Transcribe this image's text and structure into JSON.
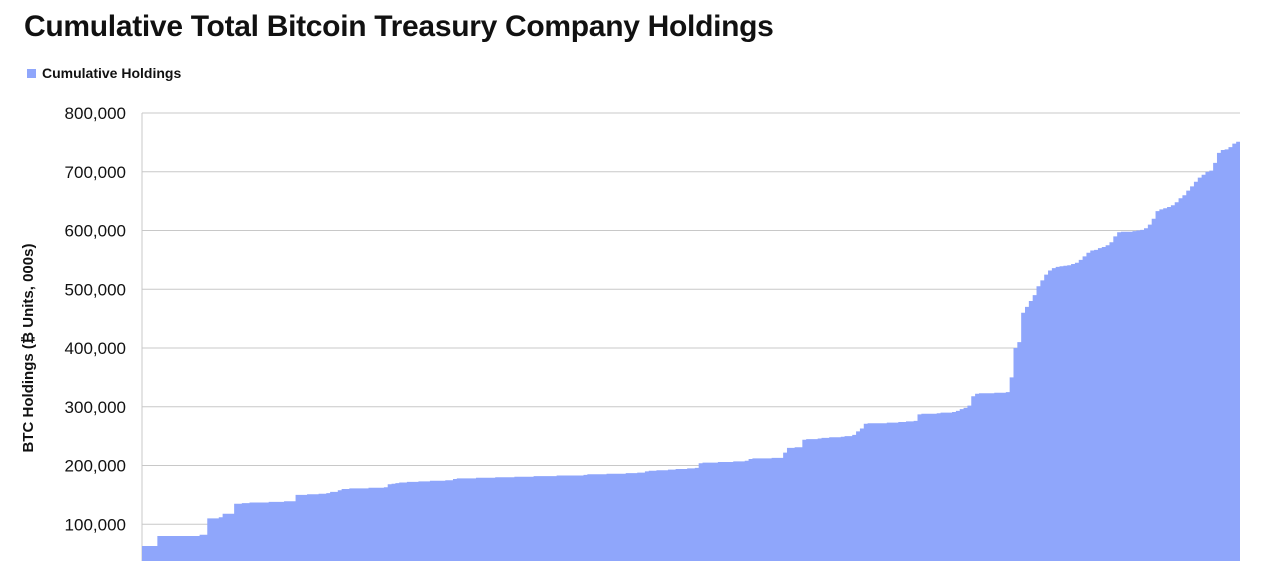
{
  "chart_data": {
    "type": "area",
    "title": "Cumulative Total Bitcoin Treasury Company Holdings",
    "ylabel": "BTC Holdings (₿ Units, 000s)",
    "xlabel": "",
    "ylim": [
      0,
      800000
    ],
    "yticks": [
      "100,000",
      "200,000",
      "300,000",
      "400,000",
      "500,000",
      "600,000",
      "700,000",
      "800,000"
    ],
    "ytick_values": [
      100000,
      200000,
      300000,
      400000,
      500000,
      600000,
      700000,
      800000
    ],
    "grid": true,
    "legend_position": "top-left",
    "series": [
      {
        "name": "Cumulative Holdings",
        "color": "#8fa6fb",
        "y": [
          63000,
          63000,
          63000,
          63000,
          80000,
          80000,
          80000,
          80000,
          80000,
          80000,
          80000,
          80000,
          80000,
          80000,
          80000,
          82000,
          82000,
          110000,
          110000,
          110000,
          112000,
          118000,
          118000,
          118000,
          135000,
          135000,
          136000,
          136000,
          137000,
          137000,
          137000,
          137000,
          137000,
          138000,
          138000,
          138000,
          138000,
          139000,
          139000,
          139000,
          150000,
          150000,
          150000,
          151000,
          151000,
          151000,
          152000,
          152000,
          153000,
          155000,
          155000,
          158000,
          160000,
          160000,
          161000,
          161000,
          161000,
          161000,
          161000,
          162000,
          162000,
          162000,
          162000,
          163000,
          168000,
          169000,
          170000,
          171000,
          171000,
          172000,
          172000,
          172000,
          173000,
          173000,
          173000,
          174000,
          174000,
          174000,
          174000,
          175000,
          175000,
          177000,
          178000,
          178000,
          178000,
          178000,
          178000,
          179000,
          179000,
          179000,
          179000,
          179000,
          180000,
          180000,
          180000,
          180000,
          180000,
          181000,
          181000,
          181000,
          181000,
          181000,
          182000,
          182000,
          182000,
          182000,
          182000,
          182000,
          183000,
          183000,
          183000,
          183000,
          183000,
          183000,
          183000,
          184000,
          185000,
          185000,
          185000,
          185000,
          185000,
          186000,
          186000,
          186000,
          186000,
          186000,
          187000,
          187000,
          187000,
          188000,
          188000,
          190000,
          191000,
          191000,
          192000,
          192000,
          192000,
          193000,
          193000,
          194000,
          194000,
          194000,
          195000,
          195000,
          196000,
          204000,
          205000,
          205000,
          205000,
          205000,
          206000,
          206000,
          206000,
          206000,
          207000,
          207000,
          207000,
          208000,
          211000,
          212000,
          212000,
          212000,
          212000,
          212000,
          213000,
          213000,
          213000,
          222000,
          230000,
          230000,
          231000,
          231000,
          244000,
          245000,
          245000,
          245000,
          246000,
          247000,
          247000,
          248000,
          248000,
          248000,
          249000,
          250000,
          250000,
          252000,
          258000,
          263000,
          271000,
          272000,
          272000,
          272000,
          272000,
          272000,
          273000,
          273000,
          273000,
          274000,
          274000,
          275000,
          275000,
          276000,
          287000,
          288000,
          288000,
          288000,
          288000,
          289000,
          290000,
          290000,
          290000,
          291000,
          293000,
          296000,
          298000,
          302000,
          318000,
          322000,
          323000,
          323000,
          323000,
          323000,
          324000,
          324000,
          324000,
          325000,
          350000,
          400000,
          410000,
          460000,
          470000,
          480000,
          490000,
          505000,
          515000,
          525000,
          532000,
          536000,
          538000,
          539000,
          540000,
          541000,
          543000,
          545000,
          550000,
          556000,
          562000,
          566000,
          567000,
          570000,
          572000,
          575000,
          580000,
          590000,
          597000,
          598000,
          598000,
          598000,
          599000,
          600000,
          601000,
          604000,
          610000,
          620000,
          633000,
          636000,
          638000,
          640000,
          643000,
          648000,
          655000,
          660000,
          668000,
          675000,
          683000,
          690000,
          695000,
          700000,
          702000,
          715000,
          732000,
          737000,
          738000,
          742000,
          748000,
          751000
        ]
      }
    ]
  }
}
